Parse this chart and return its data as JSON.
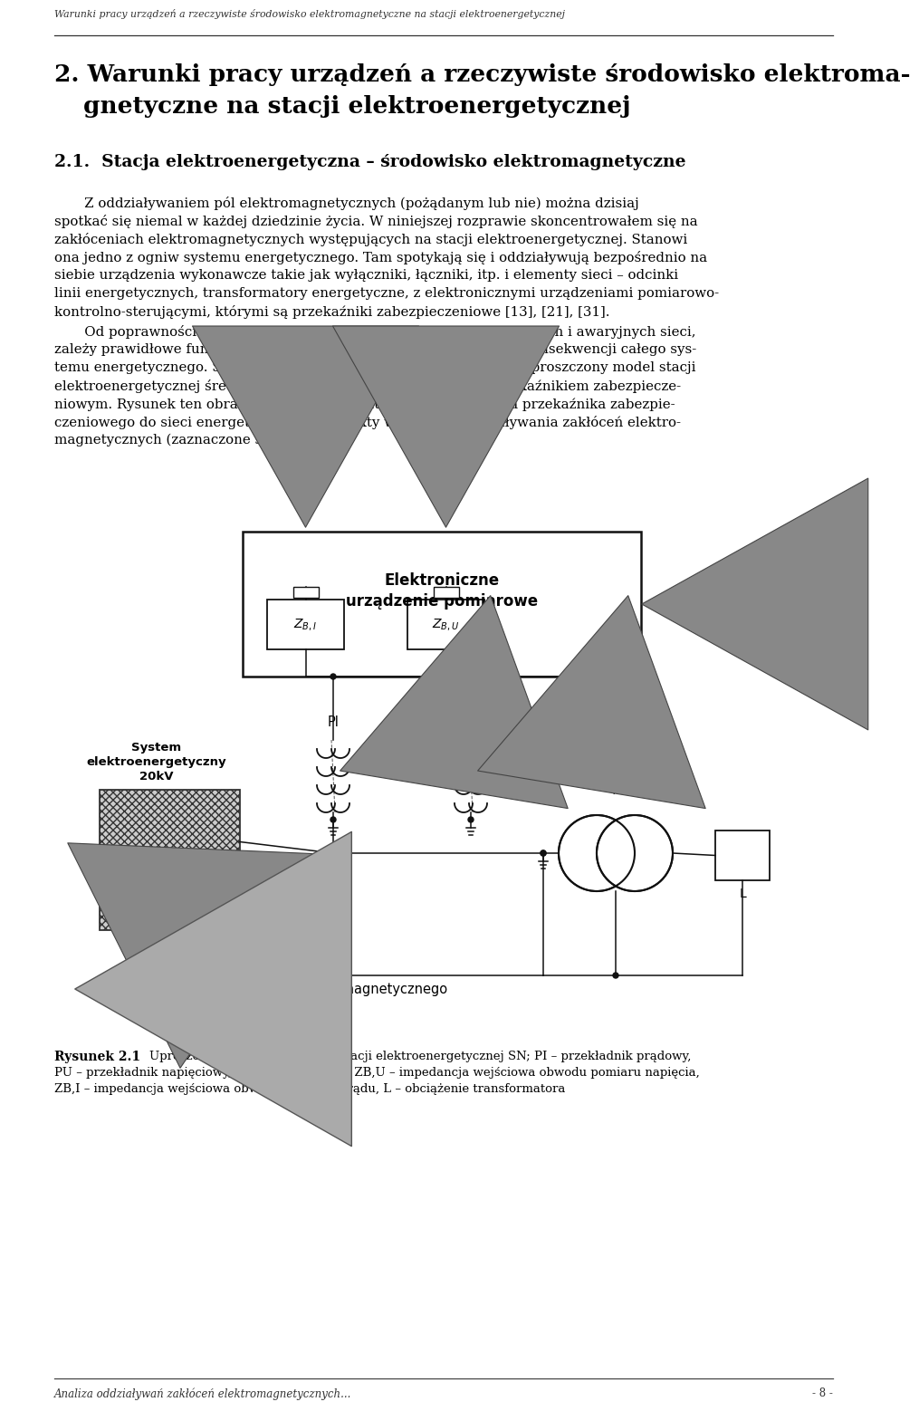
{
  "header_text": "Warunki pracy urządzeń a rzeczywiste środowisko elektromagnetyczne na stacji elektroenergetycznej",
  "footer_left": "Analiza oddziaływań zakłóceń elektromagnetycznych...",
  "footer_right": "- 8 -",
  "chapter_title_line1": "2. Warunki pracy urządzeń a rzeczywiste środowisko elektroma-",
  "chapter_title_line2": "gnetyczne na stacji elektroenergetycznej",
  "section_title": "2.1.  Stacja elektroenergetyczna – środowisko elektromagnetyczne",
  "para1_lines": [
    "       Z oddziaływaniem pól elektromagnetycznych (pożądanym lub nie) można dzisiaj",
    "spotkać się niemal w każdej dziedzinie życia. W niniejszej rozprawie skoncentrowałem się na",
    "zakłóceniach elektromagnetycznych występujących na stacji elektroenergetycznej. Stanowi",
    "ona jedno z ogniw systemu energetycznego. Tam spotykają się i oddziaływują bezpośrednio na",
    "siebie urządzenia wykonawcze takie jak wyłączniki, łączniki, itp. i elementy sieci – odcinki",
    "linii energetycznych, transformatory energetyczne, z elektronicznymi urządzeniami pomiarowo-",
    "kontrolno-sterującymi, którymi są przekaźniki zabezpieczeniowe [13], [21], [31]."
  ],
  "para2_lines": [
    "       Od poprawności działania tych ostatnich, w warunkach łączeniowych i awaryjnych sieci,",
    "zależy prawidłowe funkcjonowanie stacji elektroenergetycznej, a w konsekwencji całego sys-",
    "temu energetycznego. Schemat blokowy (rysunek 2.1) przedstawia uproszczony model stacji",
    "elektroenergetycznej średniego napięcia (SN), z wyróżnionym przekaźnikiem zabezpiecze-",
    "niowym. Rysunek ten obrazuje (w uproszczeniu) sposób dołączenia przekaźnika zabezpie-",
    "czeniowego do sieci energetycznej oraz punkty wnikania i oddziaływania zakłóceń elektro-",
    "magnetycznych (zaznaczone strzałkami)."
  ],
  "caption_line1": "Uproszczony schemat blokowy stacji elektroenergetycznej SN; PI – przekładnik prądowy,",
  "caption_line2": "PU – przekładnik napięciowy, Tr – transformator, ZB,U – impedancja wejściowa obwodu pomiaru napięcia,",
  "caption_line3": "ZB,I – impedancja wejściowa obwodu pomiaru prądu, L – obciążenie transformatora",
  "bg_color": "#ffffff",
  "text_color": "#000000"
}
